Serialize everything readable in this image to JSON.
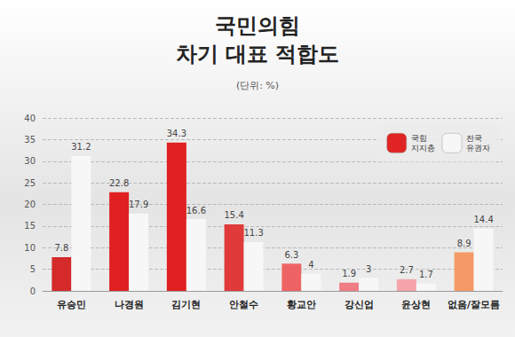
{
  "chart_data": {
    "type": "bar",
    "title": "국민의힘 차기 대표 적합도",
    "subtitle": "(단위: %)",
    "categories": [
      "유승민",
      "나경원",
      "김기현",
      "안철수",
      "황교안",
      "강신업",
      "윤상현",
      "없음/잘모름"
    ],
    "series": [
      {
        "name": "국힘 지지층",
        "color": "#e02424",
        "colors": [
          "#d42a2a",
          "#e02020",
          "#e02020",
          "#e03a3a",
          "#ee6464",
          "#f07c84",
          "#f4a4aa",
          "#f59a66"
        ],
        "values": [
          7.8,
          22.8,
          34.3,
          15.4,
          6.3,
          1.9,
          2.7,
          8.9
        ]
      },
      {
        "name": "전국 유권자",
        "color": "#f7f7f7",
        "values": [
          31.2,
          17.9,
          16.6,
          11.3,
          4.0,
          3.0,
          1.7,
          14.4
        ]
      }
    ],
    "ylim": [
      0,
      40
    ],
    "yticks": [
      0,
      5,
      10,
      15,
      20,
      25,
      30,
      35,
      40
    ],
    "grid": true,
    "legend": "top-right",
    "data_labels": true
  }
}
